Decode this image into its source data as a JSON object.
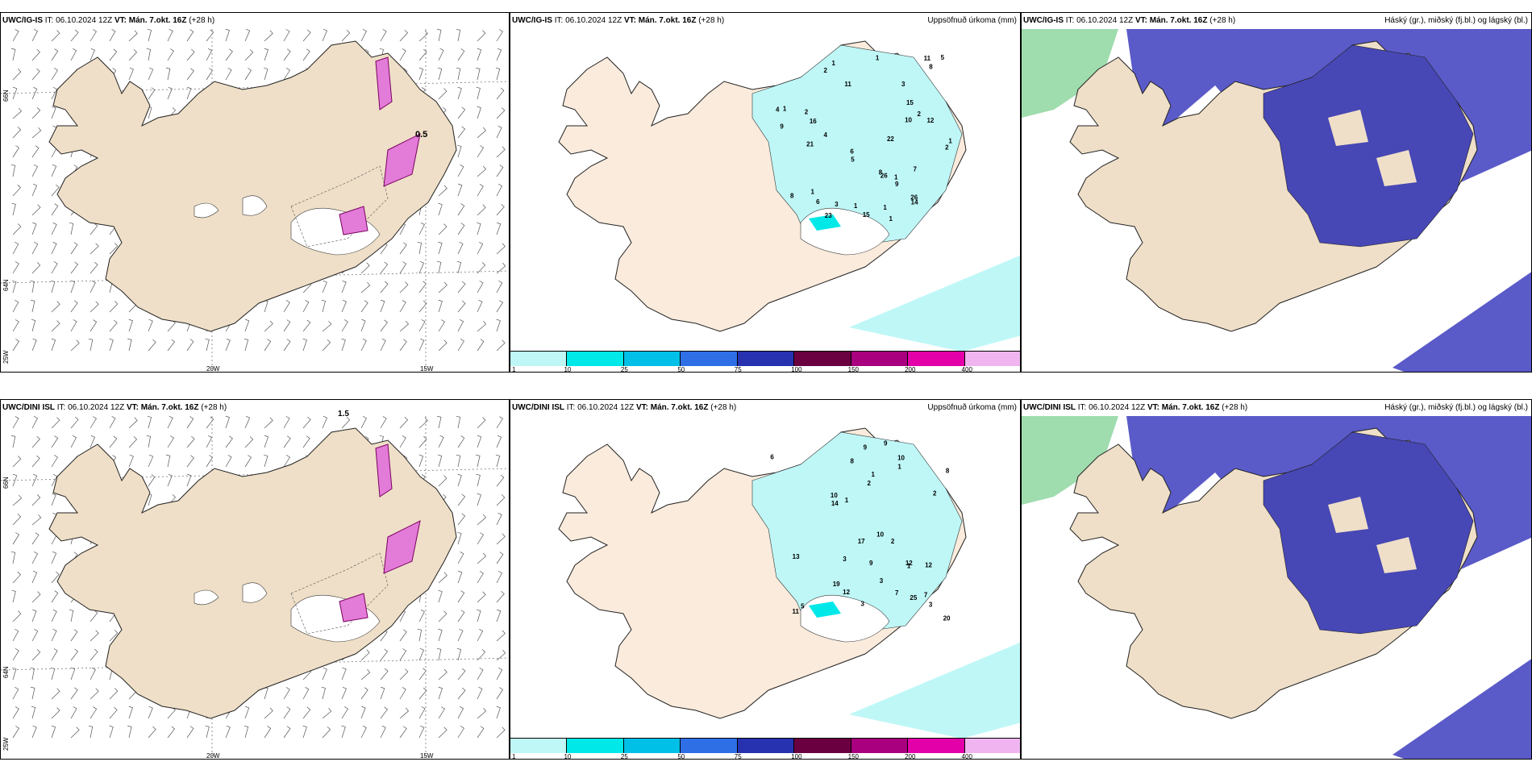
{
  "panels": [
    {
      "id": "p1",
      "model": "UWC/IG-IS",
      "it": "IT: 06.10.2024 12Z",
      "vt": "VT: Mán. 7.okt. 16Z",
      "lead": "(+28 h)",
      "right": "",
      "annot": "0.5"
    },
    {
      "id": "p2",
      "model": "UWC/IG-IS",
      "it": "IT: 06.10.2024 12Z",
      "vt": "VT: Mán. 7.okt. 16Z",
      "lead": "(+28 h)",
      "right": "Uppsöfnuð úrkoma (mm)"
    },
    {
      "id": "p3",
      "model": "UWC/IG-IS",
      "it": "IT: 06.10.2024 12Z",
      "vt": "VT: Mán. 7.okt. 16Z",
      "lead": "(+28 h)",
      "right": "Háský (gr.), miðský (fj.bl.) og lágský (bl.)"
    },
    {
      "id": "p4",
      "model": "UWC/DINI ISL",
      "it": "IT: 06.10.2024 12Z",
      "vt": "VT: Mán. 7.okt. 16Z",
      "lead": "(+28 h)",
      "right": "",
      "annot": "1.5"
    },
    {
      "id": "p5",
      "model": "UWC/DINI ISL",
      "it": "IT: 06.10.2024 12Z",
      "vt": "VT: Mán. 7.okt. 16Z",
      "lead": "(+28 h)",
      "right": "Uppsöfnuð úrkoma (mm)"
    },
    {
      "id": "p6",
      "model": "UWC/DINI ISL",
      "it": "IT: 06.10.2024 12Z",
      "vt": "VT: Mán. 7.okt. 16Z",
      "lead": "(+28 h)",
      "right": "Háský (gr.), miðský (fj.bl.) og lágský (bl.)"
    }
  ],
  "axes": {
    "lon1": "20W",
    "lon2": "15W",
    "lat1": "66N",
    "lat2": "64N",
    "lon3": "25W"
  },
  "colorbar": {
    "labels": [
      "1",
      "10",
      "25",
      "50",
      "75",
      "100",
      "150",
      "200",
      "400"
    ],
    "colors": [
      "#bff7f7",
      "#00e8e8",
      "#00c0e8",
      "#2e6fe6",
      "#2632b0",
      "#6a0040",
      "#a8007e",
      "#e400a8",
      "#f0b4f0"
    ]
  },
  "precip_values_top": [
    "1",
    "2",
    "1",
    "2",
    "2",
    "1",
    "2",
    "4",
    "5",
    "6",
    "8",
    "4",
    "6",
    "8",
    "10",
    "11",
    "9",
    "8",
    "7",
    "12",
    "26",
    "26",
    "23",
    "14",
    "22",
    "15",
    "21",
    "16",
    "15",
    "11",
    "9",
    "5",
    "3",
    "3",
    "1",
    "1",
    "1",
    "1",
    "1",
    "1"
  ],
  "precip_values_bottom": [
    "11",
    "12",
    "10",
    "9",
    "8",
    "9",
    "7",
    "10",
    "25",
    "19",
    "20",
    "14",
    "12",
    "9",
    "7",
    "10",
    "12",
    "13",
    "17",
    "8",
    "6",
    "5",
    "3",
    "2",
    "1",
    "1",
    "1",
    "2",
    "2",
    "3",
    "3",
    "3",
    "1"
  ]
}
